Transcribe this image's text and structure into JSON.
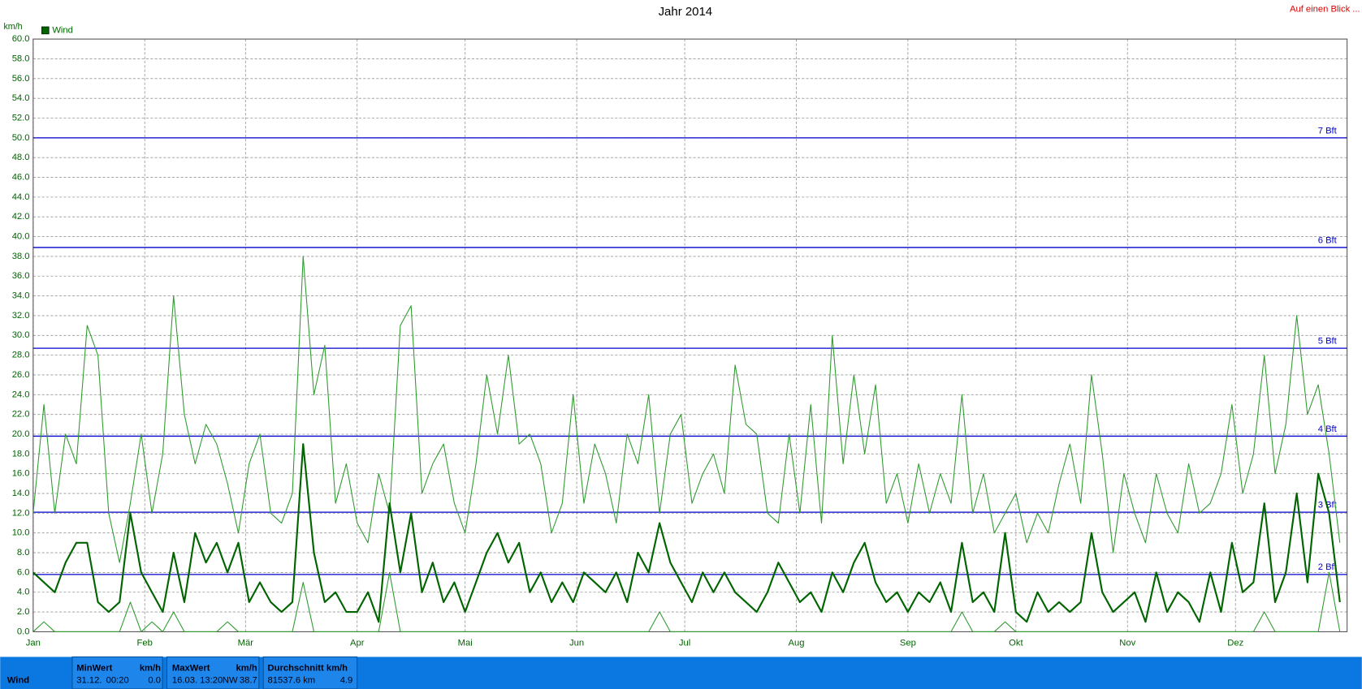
{
  "chart_data": {
    "type": "line",
    "title": "Jahr 2014",
    "y_unit": "km/h",
    "legend_label": "Wind",
    "x": [
      1,
      4,
      7,
      10,
      13,
      16,
      19,
      22,
      25,
      28,
      31,
      34,
      37,
      40,
      43,
      46,
      49,
      52,
      55,
      58,
      61,
      64,
      67,
      70,
      73,
      76,
      79,
      82,
      85,
      88,
      91,
      94,
      97,
      100,
      103,
      106,
      109,
      112,
      115,
      118,
      121,
      124,
      127,
      130,
      133,
      136,
      139,
      142,
      145,
      148,
      151,
      154,
      157,
      160,
      163,
      166,
      169,
      172,
      175,
      178,
      181,
      184,
      187,
      190,
      193,
      196,
      199,
      202,
      205,
      208,
      211,
      214,
      217,
      220,
      223,
      226,
      229,
      232,
      235,
      238,
      241,
      244,
      247,
      250,
      253,
      256,
      259,
      262,
      265,
      268,
      271,
      274,
      277,
      280,
      283,
      286,
      289,
      292,
      295,
      298,
      301,
      304,
      307,
      310,
      313,
      316,
      319,
      322,
      325,
      328,
      331,
      334,
      337,
      340,
      343,
      346,
      349,
      352,
      355,
      358,
      361,
      364
    ],
    "series": [
      {
        "color": "#2e9a2e",
        "width": 1,
        "values": [
          12,
          23,
          12,
          20,
          17,
          31,
          28,
          12,
          7,
          13,
          20,
          12,
          18,
          34,
          22,
          17,
          21,
          19,
          15,
          10,
          17,
          20,
          12,
          11,
          14,
          38,
          24,
          29,
          13,
          17,
          11,
          9,
          16,
          12,
          31,
          33,
          14,
          17,
          19,
          13,
          10,
          17,
          26,
          20,
          28,
          19,
          20,
          17,
          10,
          13,
          24,
          13,
          19,
          16,
          11,
          20,
          17,
          24,
          12,
          20,
          22,
          13,
          16,
          18,
          14,
          27,
          21,
          20,
          12,
          11,
          20,
          12,
          23,
          11,
          30,
          17,
          26,
          18,
          25,
          13,
          16,
          11,
          17,
          12,
          16,
          13,
          24,
          12,
          16,
          10,
          12,
          14,
          9,
          12,
          10,
          15,
          19,
          13,
          26,
          18,
          8,
          16,
          12,
          9,
          16,
          12,
          10,
          17,
          12,
          13,
          16,
          23,
          14,
          18,
          28,
          16,
          21,
          32,
          22,
          25,
          18,
          9
        ]
      },
      {
        "name": "Wind",
        "color": "#006400",
        "width": 2,
        "values": [
          6,
          5,
          4,
          7,
          9,
          9,
          3,
          2,
          3,
          12,
          6,
          4,
          2,
          8,
          3,
          10,
          7,
          9,
          6,
          9,
          3,
          5,
          3,
          2,
          3,
          19,
          8,
          3,
          4,
          2,
          2,
          4,
          1,
          13,
          6,
          12,
          4,
          7,
          3,
          5,
          2,
          5,
          8,
          10,
          7,
          9,
          4,
          6,
          3,
          5,
          3,
          6,
          5,
          4,
          6,
          3,
          8,
          6,
          11,
          7,
          5,
          3,
          6,
          4,
          6,
          4,
          3,
          2,
          4,
          7,
          5,
          3,
          4,
          2,
          6,
          4,
          7,
          9,
          5,
          3,
          4,
          2,
          4,
          3,
          5,
          2,
          9,
          3,
          4,
          2,
          10,
          2,
          1,
          4,
          2,
          3,
          2,
          3,
          10,
          4,
          2,
          3,
          4,
          1,
          6,
          2,
          4,
          3,
          1,
          6,
          2,
          9,
          4,
          5,
          13,
          3,
          6,
          14,
          5,
          16,
          12,
          3
        ]
      },
      {
        "color": "#2e9a2e",
        "width": 1,
        "values": [
          0,
          1,
          0,
          0,
          0,
          0,
          0,
          0,
          0,
          3,
          0,
          1,
          0,
          2,
          0,
          0,
          0,
          0,
          1,
          0,
          0,
          0,
          0,
          0,
          0,
          5,
          0,
          0,
          0,
          0,
          0,
          0,
          0,
          6,
          0,
          0,
          0,
          0,
          0,
          0,
          0,
          0,
          0,
          0,
          0,
          0,
          0,
          0,
          0,
          0,
          0,
          0,
          0,
          0,
          0,
          0,
          0,
          0,
          2,
          0,
          0,
          0,
          0,
          0,
          0,
          0,
          0,
          0,
          0,
          0,
          0,
          0,
          0,
          0,
          0,
          0,
          0,
          0,
          0,
          0,
          0,
          0,
          0,
          0,
          0,
          0,
          2,
          0,
          0,
          0,
          1,
          0,
          0,
          0,
          0,
          0,
          0,
          0,
          0,
          0,
          0,
          0,
          0,
          0,
          0,
          0,
          0,
          0,
          0,
          0,
          0,
          0,
          0,
          0,
          2,
          0,
          0,
          0,
          0,
          0,
          6,
          0
        ]
      }
    ],
    "xlim": [
      1,
      366
    ],
    "xticks": [
      {
        "value": 1,
        "label": "Jan"
      },
      {
        "value": 32,
        "label": "Feb"
      },
      {
        "value": 60,
        "label": "Mär"
      },
      {
        "value": 91,
        "label": "Apr"
      },
      {
        "value": 121,
        "label": "Mai"
      },
      {
        "value": 152,
        "label": "Jun"
      },
      {
        "value": 182,
        "label": "Jul"
      },
      {
        "value": 213,
        "label": "Aug"
      },
      {
        "value": 244,
        "label": "Sep"
      },
      {
        "value": 274,
        "label": "Okt"
      },
      {
        "value": 305,
        "label": "Nov"
      },
      {
        "value": 335,
        "label": "Dez"
      }
    ],
    "ylim": [
      0,
      60
    ],
    "yticks": [
      {
        "value": 0,
        "label": "0.0"
      },
      {
        "value": 2,
        "label": "2.0"
      },
      {
        "value": 4,
        "label": "4.0"
      },
      {
        "value": 6,
        "label": "6.0"
      },
      {
        "value": 8,
        "label": "8.0"
      },
      {
        "value": 10,
        "label": "10.0"
      },
      {
        "value": 12,
        "label": "12.0"
      },
      {
        "value": 14,
        "label": "14.0"
      },
      {
        "value": 16,
        "label": "16.0"
      },
      {
        "value": 18,
        "label": "18.0"
      },
      {
        "value": 20,
        "label": "20.0"
      },
      {
        "value": 22,
        "label": "22.0"
      },
      {
        "value": 24,
        "label": "24.0"
      },
      {
        "value": 26,
        "label": "26.0"
      },
      {
        "value": 28,
        "label": "28.0"
      },
      {
        "value": 30,
        "label": "30.0"
      },
      {
        "value": 32,
        "label": "32.0"
      },
      {
        "value": 34,
        "label": "34.0"
      },
      {
        "value": 36,
        "label": "36.0"
      },
      {
        "value": 38,
        "label": "38.0"
      },
      {
        "value": 40,
        "label": "40.0"
      },
      {
        "value": 42,
        "label": "42.0"
      },
      {
        "value": 44,
        "label": "44.0"
      },
      {
        "value": 46,
        "label": "46.0"
      },
      {
        "value": 48,
        "label": "48.0"
      },
      {
        "value": 50,
        "label": "50.0"
      },
      {
        "value": 52,
        "label": "52.0"
      },
      {
        "value": 54,
        "label": "54.0"
      },
      {
        "value": 56,
        "label": "56.0"
      },
      {
        "value": 58,
        "label": "58.0"
      },
      {
        "value": 60,
        "label": "60.0"
      }
    ],
    "grid": true,
    "thresholds": [
      {
        "value": 50,
        "label": "7 Bft"
      },
      {
        "value": 38.9,
        "label": "6 Bft"
      },
      {
        "value": 28.7,
        "label": "5 Bft"
      },
      {
        "value": 19.8,
        "label": "4 Bft"
      },
      {
        "value": 12.1,
        "label": "3 Bft"
      },
      {
        "value": 5.8,
        "label": "2 Bft"
      }
    ],
    "threshold_color": "#0000cc"
  },
  "link": "Auf einen Blick ...",
  "summary": {
    "row_label": "Wind",
    "min": {
      "header": "MinWert",
      "unit": "km/h",
      "date": "31.12.",
      "time": "00:20",
      "value": "0.0"
    },
    "max": {
      "header": "MaxWert",
      "unit": "km/h",
      "date": "16.03.",
      "time": "13:20",
      "direction": "NW",
      "value": "38.7"
    },
    "avg": {
      "header": "Durchschnitt km/h",
      "distance": "81537.6 km",
      "value": "4.9"
    }
  }
}
